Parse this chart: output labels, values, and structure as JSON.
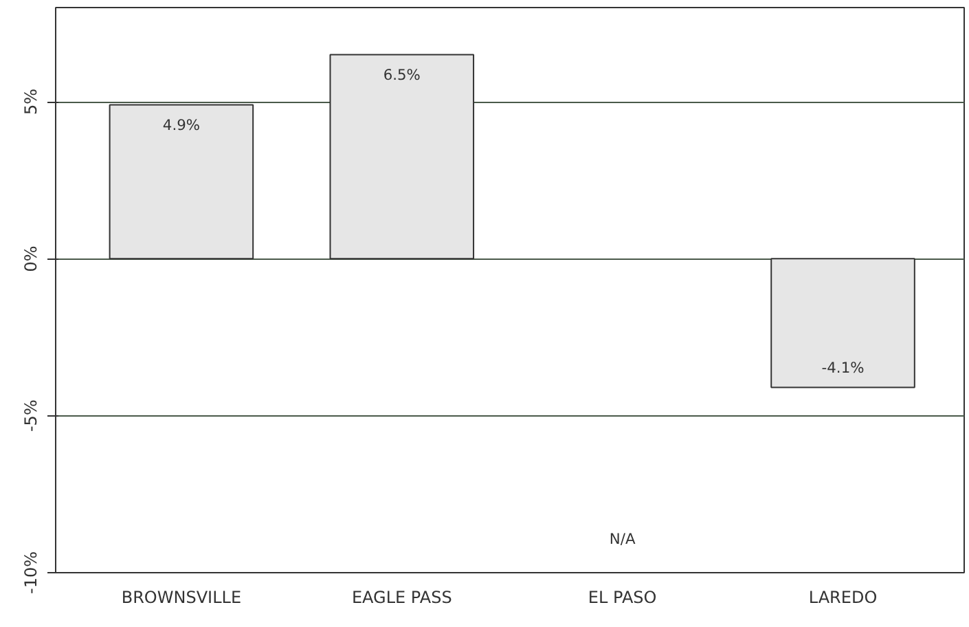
{
  "chart_data": {
    "type": "bar",
    "categories": [
      "BROWNSVILLE",
      "EAGLE PASS",
      "EL PASO",
      "LAREDO"
    ],
    "values": [
      4.9,
      6.5,
      null,
      -4.1
    ],
    "value_labels": [
      "4.9%",
      "6.5%",
      null,
      "-4.1%"
    ],
    "color": "#e6e6e6",
    "ylim": [
      -10,
      8
    ],
    "yticks": [
      {
        "value": -10,
        "label": "-10%"
      },
      {
        "value": -5,
        "label": "-5%"
      },
      {
        "value": 0,
        "label": "0%"
      },
      {
        "value": 5,
        "label": "5%"
      }
    ],
    "grid": "y",
    "annotations": [
      "N/A"
    ]
  }
}
